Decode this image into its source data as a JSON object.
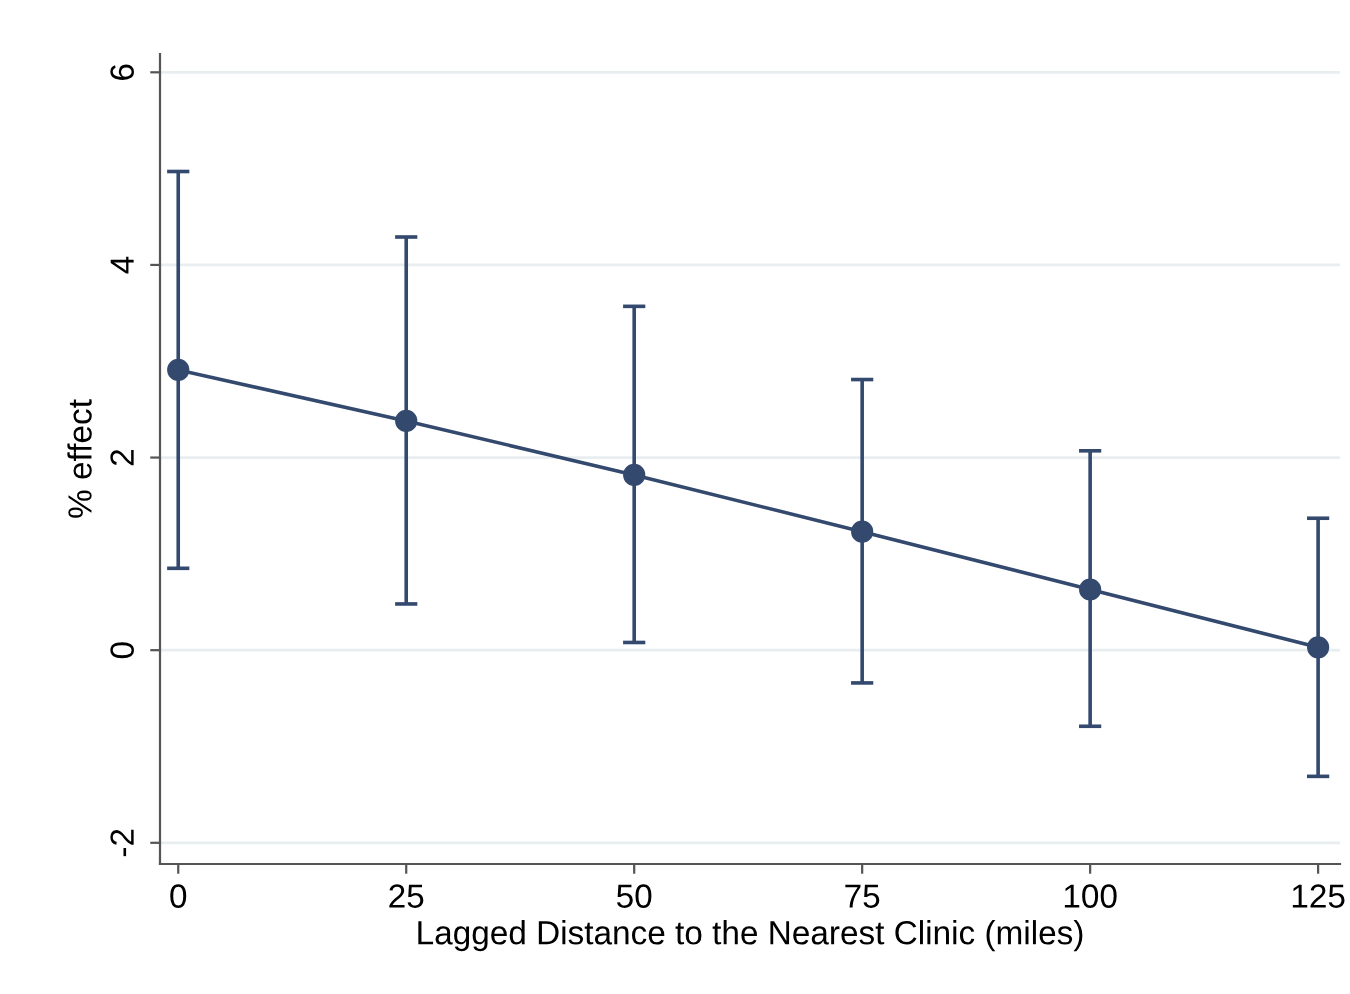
{
  "chart_data": {
    "type": "line",
    "xlabel": "Lagged Distance to the Nearest Clinic (miles)",
    "ylabel": "% effect",
    "x": [
      0,
      25,
      50,
      75,
      100,
      125
    ],
    "series": [
      {
        "color": "#34496e",
        "values": [
          2.91,
          2.38,
          1.82,
          1.23,
          0.63,
          0.03
        ],
        "errors": [
          [
            0.85,
            4.97
          ],
          [
            0.48,
            4.29
          ],
          [
            0.08,
            3.57
          ],
          [
            -0.34,
            2.81
          ],
          [
            -0.79,
            2.07
          ],
          [
            -1.31,
            1.37
          ]
        ]
      }
    ],
    "xlim": [
      -2,
      127.4
    ],
    "ylim": [
      -2.22,
      6.19
    ],
    "xticks": [
      0,
      25,
      50,
      75,
      100,
      125
    ],
    "yticks": [
      -2,
      0,
      2,
      4,
      6
    ],
    "grid": "y",
    "marker": "circle",
    "line_style": "solid"
  }
}
